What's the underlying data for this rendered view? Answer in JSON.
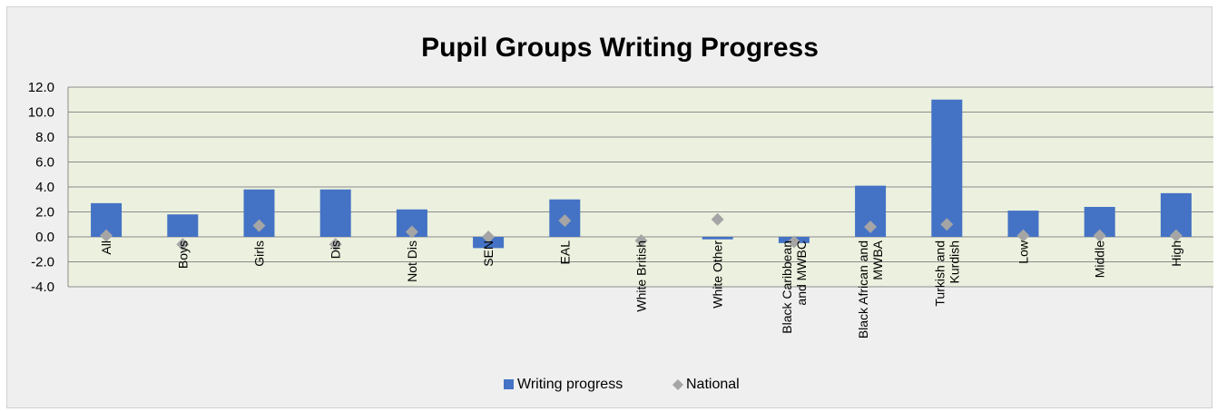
{
  "chart_data": {
    "type": "bar",
    "title": "Pupil Groups Writing Progress",
    "categories": [
      [
        "All"
      ],
      [
        "Boys"
      ],
      [
        "Girls"
      ],
      [
        "Dis"
      ],
      [
        "Not Dis"
      ],
      [
        "SEN"
      ],
      [
        "EAL"
      ],
      [
        "White British"
      ],
      [
        "White Other"
      ],
      [
        "Black Caribbean",
        "and MWBC"
      ],
      [
        "Black African and",
        "MWBA"
      ],
      [
        "Turkish and",
        "Kurdish"
      ],
      [
        "Low"
      ],
      [
        "Middle"
      ],
      [
        "High"
      ]
    ],
    "series": [
      {
        "name": "Writing progress",
        "kind": "bar",
        "color": "#4472c4",
        "values": [
          2.7,
          1.8,
          3.8,
          3.8,
          2.2,
          -0.9,
          3.0,
          0.0,
          -0.2,
          -0.5,
          4.1,
          11.0,
          2.1,
          2.4,
          3.5
        ]
      },
      {
        "name": "National",
        "kind": "marker",
        "color": "#a5a5a5",
        "values": [
          0.1,
          -0.6,
          0.9,
          -0.6,
          0.4,
          0.0,
          1.3,
          -0.3,
          1.4,
          -0.4,
          0.8,
          1.0,
          0.1,
          0.1,
          0.1
        ]
      }
    ],
    "yticks": [
      "12.0",
      "10.0",
      "8.0",
      "6.0",
      "4.0",
      "2.0",
      "0.0",
      "-2.0",
      "-4.0"
    ],
    "ylim": [
      -4,
      12
    ],
    "grid": true,
    "plot_background": "#ebf1de",
    "legend_position": "bottom",
    "xlabel": "",
    "ylabel": ""
  }
}
